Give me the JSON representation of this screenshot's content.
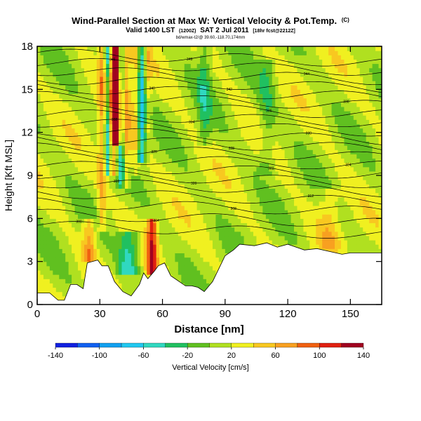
{
  "chart_data": {
    "type": "heatmap",
    "title": "Wind-Parallel Section at Max W: Vertical Velocity & Pot.Temp.",
    "title_mark": "(C)",
    "subtitle": "Valid 1400 LST",
    "subtitle_paren": "(1200Z)",
    "subtitle_date": "SAT 2 Jul 2011",
    "subtitle_run": "[18hr fcst@2212Z]",
    "info_line": "bd/wmax-t2/@ 39.60,-118.70,174mm",
    "xlabel": "Distance [nm]",
    "ylabel": "Height [Kft MSL]",
    "xlim": [
      0,
      165
    ],
    "ylim": [
      0,
      18
    ],
    "xticks": [
      "0",
      "30",
      "60",
      "90",
      "120",
      "150"
    ],
    "yticks": [
      "0",
      "3",
      "6",
      "9",
      "12",
      "15",
      "18"
    ],
    "colorbar": {
      "label": "Vertical Velocity [cm/s]",
      "ticks": [
        "-140",
        "-100",
        "-60",
        "-20",
        "20",
        "60",
        "100",
        "140"
      ],
      "bins": [
        {
          "lo": -140,
          "color": "#1020e0"
        },
        {
          "lo": -120,
          "color": "#1060f0"
        },
        {
          "lo": -100,
          "color": "#10a0f0"
        },
        {
          "lo": -80,
          "color": "#20c8f0"
        },
        {
          "lo": -60,
          "color": "#30d8c0"
        },
        {
          "lo": -40,
          "color": "#20c060"
        },
        {
          "lo": -20,
          "color": "#60c020"
        },
        {
          "lo": 0,
          "color": "#b0e020"
        },
        {
          "lo": 20,
          "color": "#f0f020"
        },
        {
          "lo": 40,
          "color": "#f8c820"
        },
        {
          "lo": 60,
          "color": "#f8a020"
        },
        {
          "lo": 80,
          "color": "#f06010"
        },
        {
          "lo": 100,
          "color": "#e02010"
        },
        {
          "lo": 120,
          "color": "#a00020"
        }
      ]
    },
    "terrain": [
      [
        0,
        0.8
      ],
      [
        6,
        0.8
      ],
      [
        10,
        0.3
      ],
      [
        13,
        0.3
      ],
      [
        16,
        1.4
      ],
      [
        19,
        1.4
      ],
      [
        22,
        1.1
      ],
      [
        24,
        2.9
      ],
      [
        29,
        3.1
      ],
      [
        31,
        2.7
      ],
      [
        34,
        2.7
      ],
      [
        37,
        1.6
      ],
      [
        41,
        0.9
      ],
      [
        45,
        0.6
      ],
      [
        49,
        1.4
      ],
      [
        51,
        2.2
      ],
      [
        53,
        1.8
      ],
      [
        56,
        2.3
      ],
      [
        58,
        2.7
      ],
      [
        61,
        2.9
      ],
      [
        64,
        2.0
      ],
      [
        68,
        1.6
      ],
      [
        71,
        1.3
      ],
      [
        74,
        1.3
      ],
      [
        77,
        1.2
      ],
      [
        80,
        0.9
      ],
      [
        84,
        1.6
      ],
      [
        87,
        2.5
      ],
      [
        90,
        3.4
      ],
      [
        94,
        3.8
      ],
      [
        97,
        4.2
      ],
      [
        104,
        4.1
      ],
      [
        110,
        4.3
      ],
      [
        115,
        4.0
      ],
      [
        120,
        4.2
      ],
      [
        124,
        4.0
      ],
      [
        128,
        3.8
      ],
      [
        134,
        3.9
      ],
      [
        140,
        3.7
      ],
      [
        146,
        3.5
      ],
      [
        150,
        3.6
      ],
      [
        155,
        3.6
      ],
      [
        165,
        3.6
      ]
    ],
    "background_w": 15,
    "w_features": [
      {
        "x": 31,
        "w": 2,
        "zmin": 5,
        "zmax": 18,
        "value": 60
      },
      {
        "x": 34,
        "w": 1.5,
        "zmin": 9,
        "zmax": 18,
        "value": -70
      },
      {
        "x": 36,
        "w": 2,
        "zmin": 9,
        "zmax": 18,
        "value": 90
      },
      {
        "x": 38,
        "w": 2,
        "zmin": 11,
        "zmax": 18,
        "value": 130
      },
      {
        "x": 40,
        "w": 1.5,
        "zmin": 8,
        "zmax": 18,
        "value": -30
      },
      {
        "x": 43,
        "w": 1.5,
        "zmin": 8,
        "zmax": 18,
        "value": 60
      },
      {
        "x": 47,
        "w": 2,
        "zmin": 9,
        "zmax": 18,
        "value": 50
      },
      {
        "x": 50,
        "w": 2,
        "zmin": 10,
        "zmax": 18,
        "value": -70
      },
      {
        "x": 53,
        "w": 1.5,
        "zmin": 12,
        "zmax": 18,
        "value": 40
      },
      {
        "x": 25,
        "w": 3,
        "zmin": 3,
        "zmax": 6,
        "value": 70
      },
      {
        "x": 55,
        "w": 2.5,
        "zmin": 2,
        "zmax": 6,
        "value": 110
      },
      {
        "x": 44,
        "w": 5,
        "zmin": 2,
        "zmax": 5,
        "value": -50
      },
      {
        "x": 140,
        "w": 5,
        "zmin": 4,
        "zmax": 8,
        "value": 45
      },
      {
        "x": 80,
        "w": 3,
        "zmin": 11,
        "zmax": 18,
        "value": -20
      },
      {
        "x": 110,
        "w": 4,
        "zmin": 9,
        "zmax": 17,
        "value": -15
      }
    ],
    "theta_levels": [
      {
        "z": 5.2,
        "label": "300"
      },
      {
        "z": 6.0,
        "label": "304"
      },
      {
        "z": 6.8,
        "label": "308"
      },
      {
        "z": 7.5,
        "label": "312"
      },
      {
        "z": 8.2,
        "label": "316"
      },
      {
        "z": 8.8,
        "label": "320"
      },
      {
        "z": 9.4,
        "label": "322"
      },
      {
        "z": 10.0,
        "label": "324"
      },
      {
        "z": 10.6,
        "label": "326"
      },
      {
        "z": 11.2,
        "label": "328"
      },
      {
        "z": 11.8,
        "label": "330"
      },
      {
        "z": 12.4,
        "label": "332"
      },
      {
        "z": 13.0,
        "label": "334"
      },
      {
        "z": 13.6,
        "label": "336"
      },
      {
        "z": 14.2,
        "label": "338"
      },
      {
        "z": 14.8,
        "label": "340"
      },
      {
        "z": 15.4,
        "label": "342"
      },
      {
        "z": 16.0,
        "label": "344"
      },
      {
        "z": 16.6,
        "label": "346"
      },
      {
        "z": 17.2,
        "label": "348"
      }
    ]
  }
}
